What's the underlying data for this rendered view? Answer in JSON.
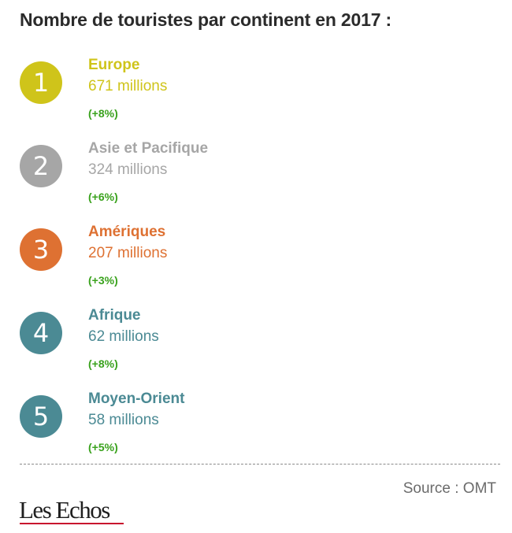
{
  "header": {
    "title": "Nombre de touristes par continent en 2017 :"
  },
  "chart_data": {
    "type": "table",
    "title": "Nombre de touristes par continent en 2017 :",
    "columns": [
      "rank",
      "region",
      "tourists",
      "growth"
    ],
    "rows": [
      {
        "rank": "1",
        "region": "Europe",
        "tourists": "671 millions",
        "growth": "(+8%)",
        "color": "#cfc41a"
      },
      {
        "rank": "2",
        "region": "Asie et Pacifique",
        "tourists": "324 millions",
        "growth": "(+6%)",
        "color": "#a6a6a6"
      },
      {
        "rank": "3",
        "region": "Amériques",
        "tourists": "207 millions",
        "growth": "(+3%)",
        "color": "#de7132"
      },
      {
        "rank": "4",
        "region": "Afrique",
        "tourists": "62 millions",
        "growth": "(+8%)",
        "color": "#4b8a94"
      },
      {
        "rank": "5",
        "region": "Moyen-Orient",
        "tourists": "58 millions",
        "growth": "(+5%)",
        "color": "#4b8a94"
      }
    ]
  },
  "footer": {
    "source": "Source : OMT",
    "logo_text": "Les Echos",
    "logo_color": "#c8102e"
  }
}
